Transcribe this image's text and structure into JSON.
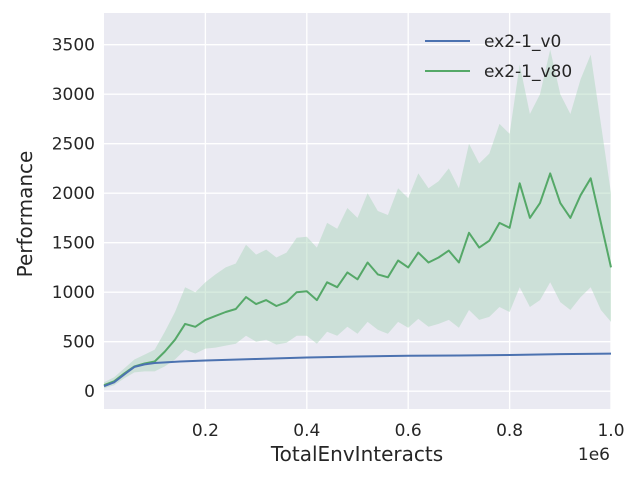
{
  "chart_data": {
    "type": "line",
    "title": "",
    "xlabel": "TotalEnvInteracts",
    "ylabel": "Performance",
    "x_offset_text": "1e6",
    "xlim": [
      0.0,
      1.0
    ],
    "ylim": [
      -180,
      3820
    ],
    "x_ticks": [
      0.2,
      0.4,
      0.6,
      0.8,
      1.0
    ],
    "x_tick_labels": [
      "0.2",
      "0.4",
      "0.6",
      "0.8",
      "1.0"
    ],
    "y_ticks": [
      0,
      500,
      1000,
      1500,
      2000,
      2500,
      3000,
      3500
    ],
    "y_tick_labels": [
      "0",
      "500",
      "1000",
      "1500",
      "2000",
      "2500",
      "3000",
      "3500"
    ],
    "grid": true,
    "legend_position": "top-right",
    "series": [
      {
        "name": "ex2-1_v0",
        "color": "#4c72b0",
        "x": [
          0.0,
          0.02,
          0.04,
          0.06,
          0.08,
          0.1,
          0.15,
          0.2,
          0.3,
          0.4,
          0.5,
          0.6,
          0.7,
          0.8,
          0.9,
          1.0
        ],
        "y": [
          50,
          90,
          170,
          245,
          270,
          285,
          300,
          310,
          325,
          340,
          350,
          358,
          360,
          365,
          375,
          380
        ]
      },
      {
        "name": "ex2-1_v80",
        "color": "#55a868",
        "band_color": "#a8d5b8",
        "x": [
          0.0,
          0.02,
          0.04,
          0.06,
          0.08,
          0.1,
          0.12,
          0.14,
          0.16,
          0.18,
          0.2,
          0.22,
          0.24,
          0.26,
          0.28,
          0.3,
          0.32,
          0.34,
          0.36,
          0.38,
          0.4,
          0.42,
          0.44,
          0.46,
          0.48,
          0.5,
          0.52,
          0.54,
          0.56,
          0.58,
          0.6,
          0.62,
          0.64,
          0.66,
          0.68,
          0.7,
          0.72,
          0.74,
          0.76,
          0.78,
          0.8,
          0.82,
          0.84,
          0.86,
          0.88,
          0.9,
          0.92,
          0.94,
          0.96,
          0.98,
          1.0
        ],
        "y": [
          60,
          100,
          180,
          250,
          280,
          300,
          400,
          520,
          680,
          650,
          720,
          760,
          800,
          830,
          950,
          880,
          920,
          860,
          900,
          1000,
          1010,
          920,
          1100,
          1050,
          1200,
          1130,
          1300,
          1180,
          1150,
          1320,
          1250,
          1400,
          1300,
          1350,
          1420,
          1300,
          1600,
          1450,
          1520,
          1700,
          1650,
          2100,
          1750,
          1900,
          2200,
          1900,
          1750,
          1980,
          2150,
          1700,
          1250
        ],
        "lower": [
          30,
          60,
          130,
          190,
          200,
          200,
          250,
          320,
          420,
          380,
          430,
          440,
          460,
          480,
          560,
          500,
          520,
          470,
          490,
          560,
          560,
          480,
          600,
          560,
          650,
          580,
          700,
          620,
          580,
          700,
          640,
          730,
          650,
          680,
          720,
          640,
          820,
          720,
          750,
          850,
          800,
          1050,
          850,
          920,
          1100,
          900,
          820,
          950,
          1050,
          820,
          700
        ],
        "upper": [
          90,
          140,
          230,
          320,
          370,
          420,
          600,
          800,
          1050,
          1000,
          1100,
          1180,
          1250,
          1290,
          1480,
          1380,
          1430,
          1350,
          1400,
          1550,
          1560,
          1450,
          1700,
          1640,
          1850,
          1750,
          2000,
          1820,
          1780,
          2050,
          1950,
          2200,
          2050,
          2120,
          2250,
          2050,
          2500,
          2300,
          2400,
          2700,
          2600,
          3300,
          2800,
          3000,
          3450,
          3000,
          2800,
          3150,
          3400,
          2700,
          2000
        ]
      }
    ]
  }
}
